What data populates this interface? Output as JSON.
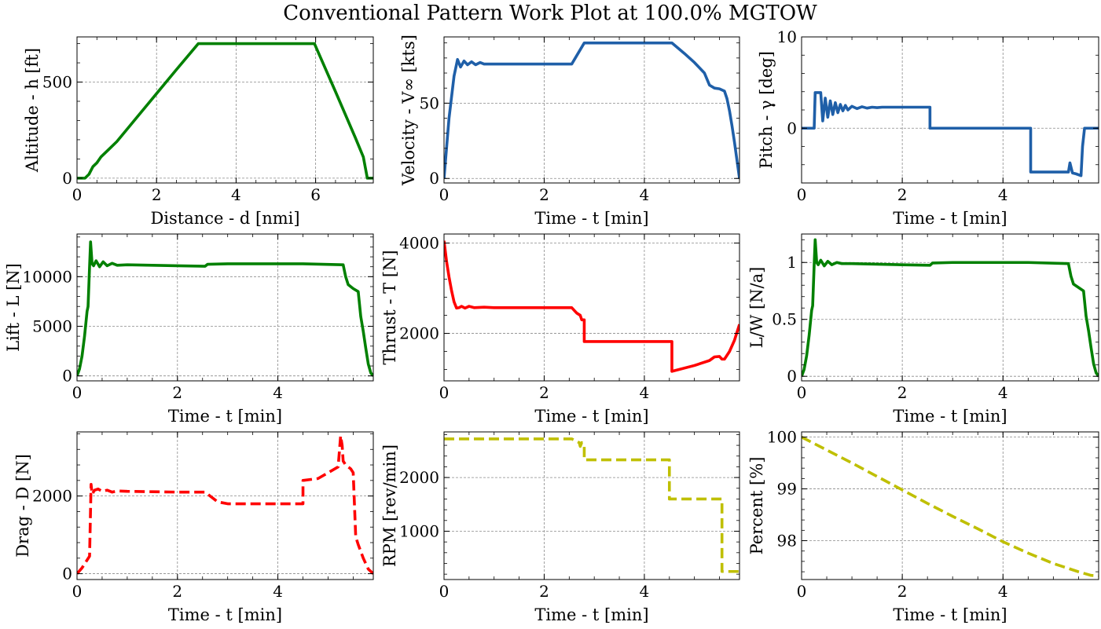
{
  "figure": {
    "title": "Conventional Pattern Work Plot at 100.0% MGTOW"
  },
  "chart_data": [
    {
      "id": "altitude",
      "type": "line",
      "xlabel": "Distance - d [nmi]",
      "ylabel": "Altitude - h [ft]",
      "xlim": [
        0,
        7.45
      ],
      "ylim": [
        -25,
        735
      ],
      "xticks": [
        0,
        2,
        4,
        6
      ],
      "yticks": [
        0,
        500
      ],
      "grid": true,
      "series": [
        {
          "color": "#008000",
          "dashed": false,
          "x": [
            0,
            0.2,
            0.3,
            0.4,
            0.5,
            0.6,
            0.7,
            0.8,
            1.0,
            1.5,
            2.0,
            2.5,
            3.05,
            4.0,
            5.0,
            5.97,
            6.5,
            7.0,
            7.2,
            7.3,
            7.45
          ],
          "y": [
            0,
            0,
            20,
            60,
            80,
            110,
            130,
            150,
            190,
            315,
            440,
            565,
            700,
            700,
            700,
            700,
            450,
            210,
            110,
            0,
            0
          ]
        }
      ]
    },
    {
      "id": "velocity",
      "type": "line",
      "xlabel": "Time - t [min]",
      "ylabel": "Velocity - V∞ [kts]",
      "xlim": [
        0,
        5.9
      ],
      "ylim": [
        -3,
        94
      ],
      "xticks": [
        0,
        2,
        4
      ],
      "yticks": [
        0,
        50
      ],
      "grid": true,
      "series": [
        {
          "color": "#1f5fa8",
          "dashed": false,
          "x": [
            0,
            0.1,
            0.2,
            0.27,
            0.33,
            0.4,
            0.47,
            0.55,
            0.63,
            0.72,
            0.8,
            1.0,
            1.5,
            2.0,
            2.55,
            2.8,
            3.5,
            4.0,
            4.55,
            4.8,
            5.0,
            5.2,
            5.3,
            5.4,
            5.5,
            5.6,
            5.65,
            5.7,
            5.75,
            5.8,
            5.85,
            5.9
          ],
          "y": [
            0,
            40,
            68,
            79,
            74,
            78,
            75.5,
            77.5,
            75.5,
            77,
            76,
            76,
            76,
            76,
            76,
            90,
            90,
            90,
            90,
            83,
            77,
            70,
            62,
            60,
            59.5,
            58,
            53,
            45,
            35,
            24,
            12,
            0
          ]
        }
      ]
    },
    {
      "id": "pitch",
      "type": "line",
      "xlabel": "Time - t [min]",
      "ylabel": "Pitch - γ [deg]",
      "xlim": [
        0,
        5.9
      ],
      "ylim": [
        -6,
        10
      ],
      "xticks": [
        0,
        2,
        4
      ],
      "yticks": [
        0,
        10
      ],
      "grid": true,
      "series": [
        {
          "color": "#1f5fa8",
          "dashed": false,
          "x": [
            0,
            0.25,
            0.27,
            0.38,
            0.42,
            0.47,
            0.52,
            0.57,
            0.62,
            0.67,
            0.72,
            0.77,
            0.82,
            0.87,
            0.92,
            1.0,
            1.1,
            1.2,
            1.3,
            1.4,
            1.5,
            1.6,
            1.8,
            2.0,
            2.55,
            2.55,
            4.55,
            4.55,
            5.3,
            5.33,
            5.38,
            5.45,
            5.55,
            5.58,
            5.62,
            5.9
          ],
          "y": [
            0,
            0,
            3.9,
            3.9,
            0.8,
            3.3,
            1.2,
            3.0,
            1.5,
            2.8,
            1.7,
            2.6,
            1.9,
            2.5,
            2.0,
            2.4,
            2.15,
            2.35,
            2.2,
            2.3,
            2.25,
            2.3,
            2.3,
            2.3,
            2.3,
            0,
            0,
            -4.8,
            -4.8,
            -3.8,
            -4.9,
            -5.0,
            -5.2,
            -2.0,
            0,
            0
          ]
        }
      ]
    },
    {
      "id": "lift",
      "type": "line",
      "xlabel": "Time - t [min]",
      "ylabel": "Lift - L [N]",
      "xlim": [
        0,
        5.9
      ],
      "ylim": [
        -500,
        14300
      ],
      "xticks": [
        0,
        2,
        4
      ],
      "yticks": [
        0,
        5000,
        10000
      ],
      "grid": true,
      "series": [
        {
          "color": "#008000",
          "dashed": false,
          "x": [
            0,
            0.05,
            0.1,
            0.15,
            0.2,
            0.22,
            0.25,
            0.27,
            0.3,
            0.33,
            0.38,
            0.45,
            0.52,
            0.6,
            0.7,
            0.8,
            1.0,
            1.5,
            2.0,
            2.55,
            2.6,
            3.0,
            4.0,
            4.5,
            5.3,
            5.35,
            5.4,
            5.5,
            5.6,
            5.65,
            5.7,
            5.75,
            5.8,
            5.85,
            5.9
          ],
          "y": [
            0,
            700,
            2000,
            4000,
            6500,
            7000,
            11000,
            13500,
            11300,
            11100,
            11600,
            11000,
            11500,
            11100,
            11350,
            11150,
            11200,
            11150,
            11100,
            11050,
            11250,
            11300,
            11300,
            11300,
            11200,
            10000,
            9200,
            8800,
            8500,
            6000,
            4500,
            2800,
            1200,
            300,
            0
          ]
        }
      ]
    },
    {
      "id": "thrust",
      "type": "line",
      "xlabel": "Time - t [min]",
      "ylabel": "Thrust - T [N]",
      "xlim": [
        0,
        5.9
      ],
      "ylim": [
        950,
        4200
      ],
      "xticks": [
        0,
        2,
        4
      ],
      "yticks": [
        2000,
        4000
      ],
      "grid": true,
      "series": [
        {
          "color": "#ff0000",
          "dashed": false,
          "x": [
            0,
            0.05,
            0.1,
            0.15,
            0.2,
            0.25,
            0.3,
            0.35,
            0.42,
            0.5,
            0.6,
            0.8,
            1.0,
            1.5,
            2.0,
            2.55,
            2.65,
            2.72,
            2.75,
            2.8,
            2.8,
            3.5,
            4.0,
            4.55,
            4.55,
            5.0,
            5.3,
            5.4,
            5.5,
            5.55,
            5.6,
            5.7,
            5.8,
            5.9
          ],
          "y": [
            4050,
            3600,
            3250,
            2950,
            2700,
            2560,
            2570,
            2600,
            2560,
            2600,
            2570,
            2580,
            2570,
            2570,
            2570,
            2570,
            2450,
            2400,
            2300,
            2300,
            1820,
            1820,
            1820,
            1820,
            1160,
            1290,
            1400,
            1480,
            1490,
            1430,
            1430,
            1600,
            1850,
            2200
          ]
        }
      ]
    },
    {
      "id": "load-factor",
      "type": "line",
      "xlabel": "Time - t [min]",
      "ylabel": "L/W [N/a]",
      "xlim": [
        0,
        5.9
      ],
      "ylim": [
        -0.04,
        1.25
      ],
      "xticks": [
        0,
        2,
        4
      ],
      "yticks": [
        0,
        0.5,
        1.0
      ],
      "grid": true,
      "series": [
        {
          "color": "#008000",
          "dashed": false,
          "x": [
            0,
            0.05,
            0.1,
            0.15,
            0.2,
            0.22,
            0.25,
            0.27,
            0.3,
            0.33,
            0.38,
            0.45,
            0.52,
            0.6,
            0.7,
            0.8,
            1.0,
            1.5,
            2.0,
            2.55,
            2.6,
            3.0,
            4.0,
            4.5,
            5.3,
            5.35,
            5.4,
            5.5,
            5.6,
            5.65,
            5.7,
            5.75,
            5.8,
            5.85,
            5.9
          ],
          "y": [
            0,
            0.06,
            0.18,
            0.36,
            0.58,
            0.62,
            0.98,
            1.2,
            1.0,
            0.98,
            1.02,
            0.97,
            1.01,
            0.98,
            1.0,
            0.99,
            0.99,
            0.985,
            0.98,
            0.975,
            0.995,
            1.0,
            1.0,
            1.0,
            0.99,
            0.88,
            0.81,
            0.78,
            0.75,
            0.53,
            0.4,
            0.25,
            0.11,
            0.03,
            0
          ]
        }
      ]
    },
    {
      "id": "drag",
      "type": "line",
      "xlabel": "Time - t [min]",
      "ylabel": "Drag - D [N]",
      "xlim": [
        0,
        5.9
      ],
      "ylim": [
        -150,
        3650
      ],
      "xticks": [
        0,
        2,
        4
      ],
      "yticks": [
        0,
        2000
      ],
      "grid": true,
      "series": [
        {
          "color": "#ff0000",
          "dashed": true,
          "x": [
            0,
            0.1,
            0.2,
            0.25,
            0.28,
            0.3,
            0.35,
            0.42,
            0.5,
            0.6,
            0.7,
            0.8,
            1.0,
            1.5,
            2.0,
            2.55,
            2.8,
            3.0,
            4.0,
            4.5,
            4.5,
            4.8,
            5.0,
            5.2,
            5.25,
            5.28,
            5.3,
            5.35,
            5.45,
            5.5,
            5.55,
            5.6,
            5.7,
            5.8,
            5.9
          ],
          "y": [
            0,
            150,
            350,
            450,
            2300,
            2050,
            2150,
            2180,
            2120,
            2150,
            2100,
            2130,
            2120,
            2110,
            2100,
            2100,
            1850,
            1800,
            1800,
            1800,
            2400,
            2450,
            2600,
            2750,
            3550,
            3300,
            2900,
            2800,
            2700,
            2600,
            950,
            750,
            400,
            120,
            0
          ]
        }
      ]
    },
    {
      "id": "rpm",
      "type": "line",
      "xlabel": "Time - t [min]",
      "ylabel": "RPM [rev/min]",
      "xlim": [
        0,
        5.9
      ],
      "ylim": [
        100,
        2850
      ],
      "xticks": [
        0,
        2,
        4
      ],
      "yticks": [
        1000,
        2000
      ],
      "grid": true,
      "series": [
        {
          "color": "#bfbf00",
          "dashed": true,
          "x": [
            0,
            1.0,
            2.0,
            2.55,
            2.7,
            2.72,
            2.75,
            2.8,
            2.8,
            3.5,
            4.0,
            4.5,
            4.5,
            5.0,
            5.55,
            5.55,
            5.6,
            5.9
          ],
          "y": [
            2720,
            2720,
            2720,
            2720,
            2650,
            2580,
            2650,
            2600,
            2330,
            2330,
            2330,
            2330,
            1600,
            1600,
            1600,
            250,
            250,
            250
          ]
        }
      ]
    },
    {
      "id": "percent",
      "type": "line",
      "xlabel": "Time - t [min]",
      "ylabel": "Percent [%]",
      "xlim": [
        0,
        5.9
      ],
      "ylim": [
        97.25,
        100.1
      ],
      "xticks": [
        0,
        2,
        4
      ],
      "yticks": [
        98,
        99,
        100
      ],
      "grid": true,
      "series": [
        {
          "color": "#bfbf00",
          "dashed": true,
          "x": [
            0,
            0.5,
            1.0,
            1.5,
            2.0,
            2.5,
            3.0,
            3.5,
            4.0,
            4.5,
            5.0,
            5.5,
            5.75,
            5.9
          ],
          "y": [
            100.0,
            99.75,
            99.5,
            99.24,
            98.98,
            98.72,
            98.47,
            98.23,
            97.98,
            97.76,
            97.56,
            97.4,
            97.33,
            97.32
          ]
        }
      ]
    }
  ]
}
